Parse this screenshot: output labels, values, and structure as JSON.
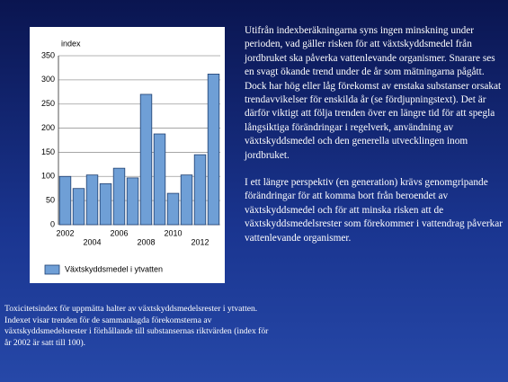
{
  "chart_data": {
    "type": "bar",
    "y_label": "index",
    "categories": [
      "2002",
      null,
      "2004",
      null,
      "2006",
      null,
      "2008",
      null,
      "2010",
      null,
      "2012",
      null
    ],
    "series": [
      {
        "name": "Växtskyddsmedel i ytvatten",
        "color": "#6f9fd6",
        "values": [
          100,
          75,
          103,
          85,
          117,
          97,
          270,
          188,
          65,
          103,
          145,
          312
        ]
      }
    ],
    "ylim": [
      0,
      350
    ],
    "yticks": [
      0,
      50,
      100,
      150,
      200,
      250,
      300,
      350
    ],
    "grid": true
  },
  "body_text": [
    "Utifrån indexberäkningarna syns ingen minskning under perioden, vad gäller risken för att växtskyddsmedel från jordbruket ska påverka vattenlevande organismer. Snarare ses en svagt ökande trend under de år som mätningarna pågått. Dock har hög eller låg förekomst av enstaka substanser orsakat trendavvikelser för enskilda år (se fördjupningstext). Det är därför viktigt att följa trenden över en längre tid för att spegla långsiktiga förändringar i regelverk, användning av växtskyddsmedel och den generella utvecklingen inom jordbruket.",
    "I ett längre perspektiv (en generation) krävs genomgripande förändringar för att komma bort från beroendet av växtskyddsmedel och för att minska risken att de växtskyddsmedelsrester som förekommer i vattendrag påverkar vattenlevande organismer."
  ],
  "caption": "Toxicitetsindex för uppmätta halter av växtskyddsmedelsrester i ytvatten. Indexet visar trenden för de sammanlagda förekomsterna av växtskyddsmedelsrester i förhållande till substansernas riktvärden (index för år 2002 är satt till 100)."
}
